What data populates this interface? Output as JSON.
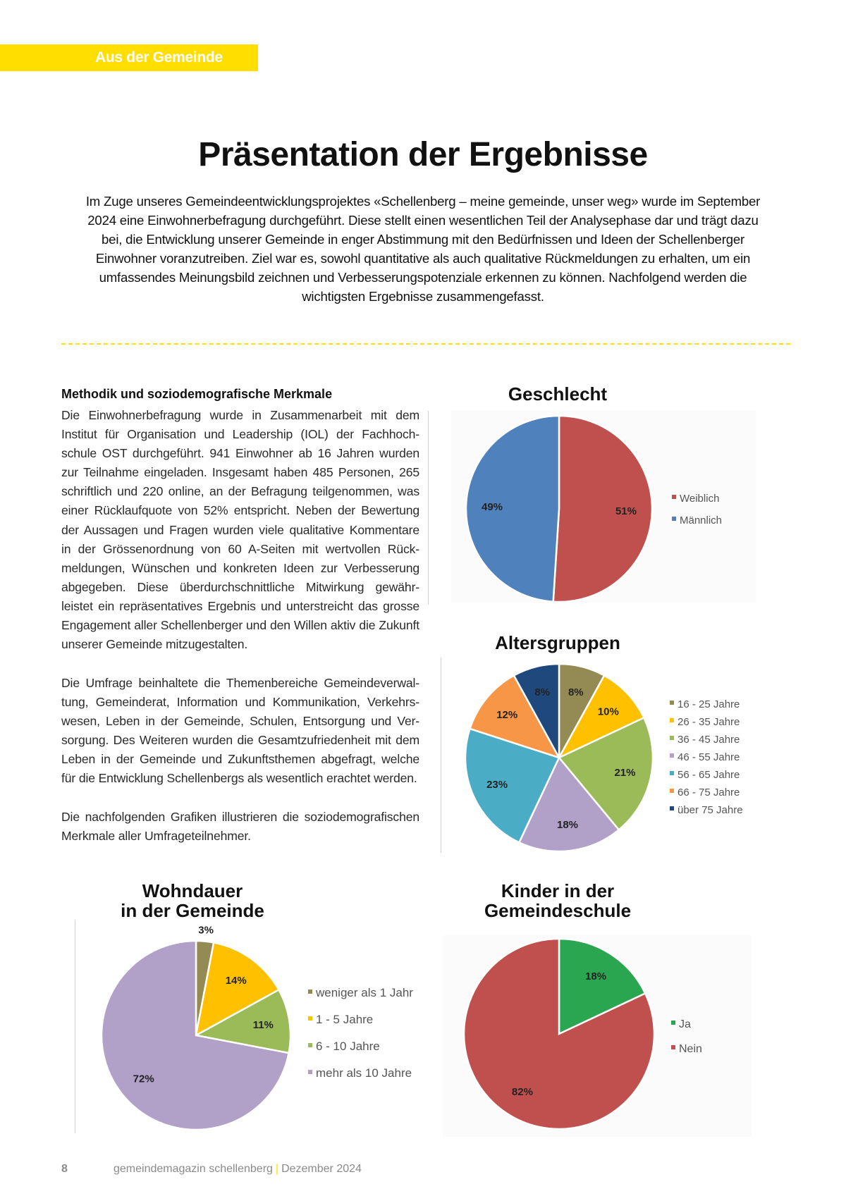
{
  "section_tag": "Aus der Gemeinde",
  "title": "Präsentation der Ergebnisse",
  "intro_lines": [
    "Im Zuge unseres Gemeindeentwicklungsprojektes «Schellenberg – meine gemeinde, unser weg» wurde im September",
    "2024 eine Einwohnerbefragung durchgeführt. Diese stellt einen wesentlichen Teil der Analysephase dar und trägt dazu",
    "bei, die Entwicklung unserer Gemeinde in enger Abstimmung mit den Bedürfnissen und Ideen der Schellenberger",
    "Einwohner voranzutreiben. Ziel war es, sowohl quantitative als auch qualitative Rückmeldungen zu erhalten, um ein",
    "umfassendes Meinungsbild zeichnen und Verbesserungspotenziale erkennen zu können. Nachfolgend werden die",
    "wichtigsten Ergebnisse zusammengefasst."
  ],
  "methodik": {
    "heading": "Methodik und soziodemografische Merkmale",
    "paragraph1": [
      "Die Einwohnerbefragung wurde in Zusammenarbeit mit dem",
      "Institut für Organisation und Leadership (IOL) der Fachhoch-",
      "schule OST durchgeführt. 941 Einwohner ab 16 Jahren wurden",
      "zur Teilnahme eingeladen. Insgesamt haben 485 Personen, 265",
      "schriftlich und 220 online, an der Befragung teilgenommen, was",
      "einer Rücklaufquote von 52% entspricht. Neben der Bewertung",
      "der Aussagen und Fragen wurden viele qualitative Kommentare",
      "in der Grössenordnung von 60 A-Seiten mit wertvollen Rück-",
      "meldungen, Wünschen und konkreten Ideen zur Verbesserung",
      "abgegeben. Diese überdurchschnittliche Mitwirkung gewähr-",
      "leistet ein repräsentatives Ergebnis und unterstreicht das grosse",
      "Engagement aller Schellenberger und den Willen aktiv die Zukunft",
      "unserer Gemeinde mitzugestalten."
    ],
    "paragraph2": [
      "Die Umfrage beinhaltete die Themenbereiche Gemeindeverwal-",
      "tung, Gemeinderat, Information und Kommunikation, Verkehrs-",
      "wesen, Leben in der Gemeinde, Schulen, Entsorgung und Ver-",
      "sorgung. Des Weiteren wurden die Gesamtzufriedenheit mit dem",
      "Leben in der Gemeinde und Zukunftsthemen abgefragt, welche",
      "für die Entwicklung Schellenbergs als wesentlich erachtet werden."
    ],
    "paragraph3": [
      "Die nachfolgenden Grafiken illustrieren die soziodemografischen",
      "Merkmale aller Umfrageteilnehmer."
    ]
  },
  "chart_data": [
    {
      "type": "pie",
      "title": "Geschlecht",
      "labels": [
        "Weiblich",
        "Männlich"
      ],
      "values": [
        51,
        49
      ],
      "data_labels": [
        "51%",
        "49%"
      ],
      "colors": [
        "#C0504D",
        "#4F81BD"
      ],
      "legend": "right"
    },
    {
      "type": "pie",
      "title": "Altersgruppen",
      "labels": [
        "16 - 25 Jahre",
        "26 - 35 Jahre",
        "36 - 45 Jahre",
        "46 - 55 Jahre",
        "56 - 65 Jahre",
        "66 - 75 Jahre",
        "über 75 Jahre"
      ],
      "values": [
        8,
        10,
        21,
        18,
        23,
        12,
        8
      ],
      "data_labels": [
        "8%",
        "10%",
        "21%",
        "18%",
        "23%",
        "12%",
        "8%"
      ],
      "colors": [
        "#948A54",
        "#FFC000",
        "#9BBB59",
        "#B1A0C7",
        "#4BACC6",
        "#F79646",
        "#1F497D"
      ],
      "legend": "right"
    },
    {
      "type": "pie",
      "title": "Wohndauer\nin der Gemeinde",
      "title_lines": [
        "Wohndauer",
        "in der Gemeinde"
      ],
      "labels": [
        "weniger als 1 Jahr",
        "1 - 5 Jahre",
        "6 - 10 Jahre",
        "mehr als 10 Jahre"
      ],
      "values": [
        3,
        14,
        11,
        72
      ],
      "data_labels": [
        "3%",
        "14%",
        "11%",
        "72%"
      ],
      "colors": [
        "#948A54",
        "#FFC000",
        "#9BBB59",
        "#B1A0C7"
      ],
      "legend": "right"
    },
    {
      "type": "pie",
      "title": "Kinder in der\nGemeindeschule",
      "title_lines": [
        "Kinder in der",
        "Gemeindeschule"
      ],
      "labels": [
        "Ja",
        "Nein"
      ],
      "values": [
        18,
        82
      ],
      "data_labels": [
        "18%",
        "82%"
      ],
      "colors": [
        "#2AA651",
        "#C0504D"
      ],
      "legend": "right"
    }
  ],
  "footer": {
    "page_number": "8",
    "magazine": "gemeindemagazin schellenberg",
    "separator": "|",
    "issue": "Dezember 2024"
  },
  "colors": {
    "accent": "#FFDE00"
  }
}
